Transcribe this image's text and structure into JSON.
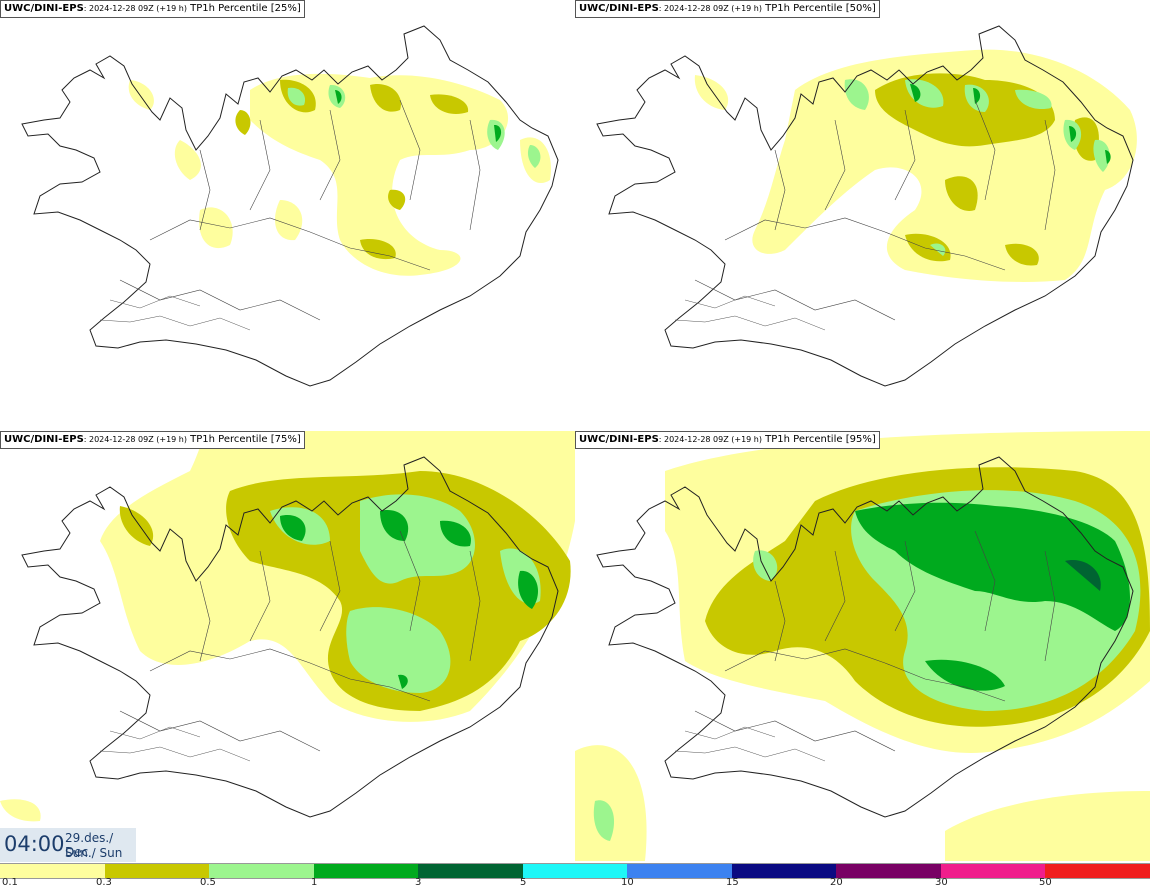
{
  "panels": [
    {
      "model": "UWC/DINI-EPS",
      "run": ": 2024-12-28 09Z (+19 h)",
      "field": " TP1h Percentile [25%]",
      "percentile": 25
    },
    {
      "model": "UWC/DINI-EPS",
      "run": ": 2024-12-28 09Z (+19 h)",
      "field": " TP1h Percentile [50%]",
      "percentile": 50
    },
    {
      "model": "UWC/DINI-EPS",
      "run": ": 2024-12-28 09Z (+19 h)",
      "field": " TP1h Percentile [75%]",
      "percentile": 75
    },
    {
      "model": "UWC/DINI-EPS",
      "run": ": 2024-12-28 09Z (+19 h)",
      "field": " TP1h Percentile [95%]",
      "percentile": 95
    }
  ],
  "time": {
    "hour": "04:00",
    "date": "29.des./ Dec",
    "day": "Sun./ Sun"
  },
  "legend": {
    "ticks": [
      "0.1",
      "0.3",
      "0.5",
      "1",
      "3",
      "5",
      "10",
      "15",
      "20",
      "30",
      "50"
    ],
    "colors": [
      "#fefe9e",
      "#c8c800",
      "#9cf58e",
      "#00aa1e",
      "#006432",
      "#1ef7f7",
      "#3c82f0",
      "#0a0a82",
      "#780064",
      "#f01e8c",
      "#f01e1e"
    ]
  },
  "colors": {
    "light_yellow": "#fefe9e",
    "olive": "#c8c800",
    "light_green": "#9cf58e",
    "green": "#00aa1e",
    "dark_green": "#006432"
  }
}
